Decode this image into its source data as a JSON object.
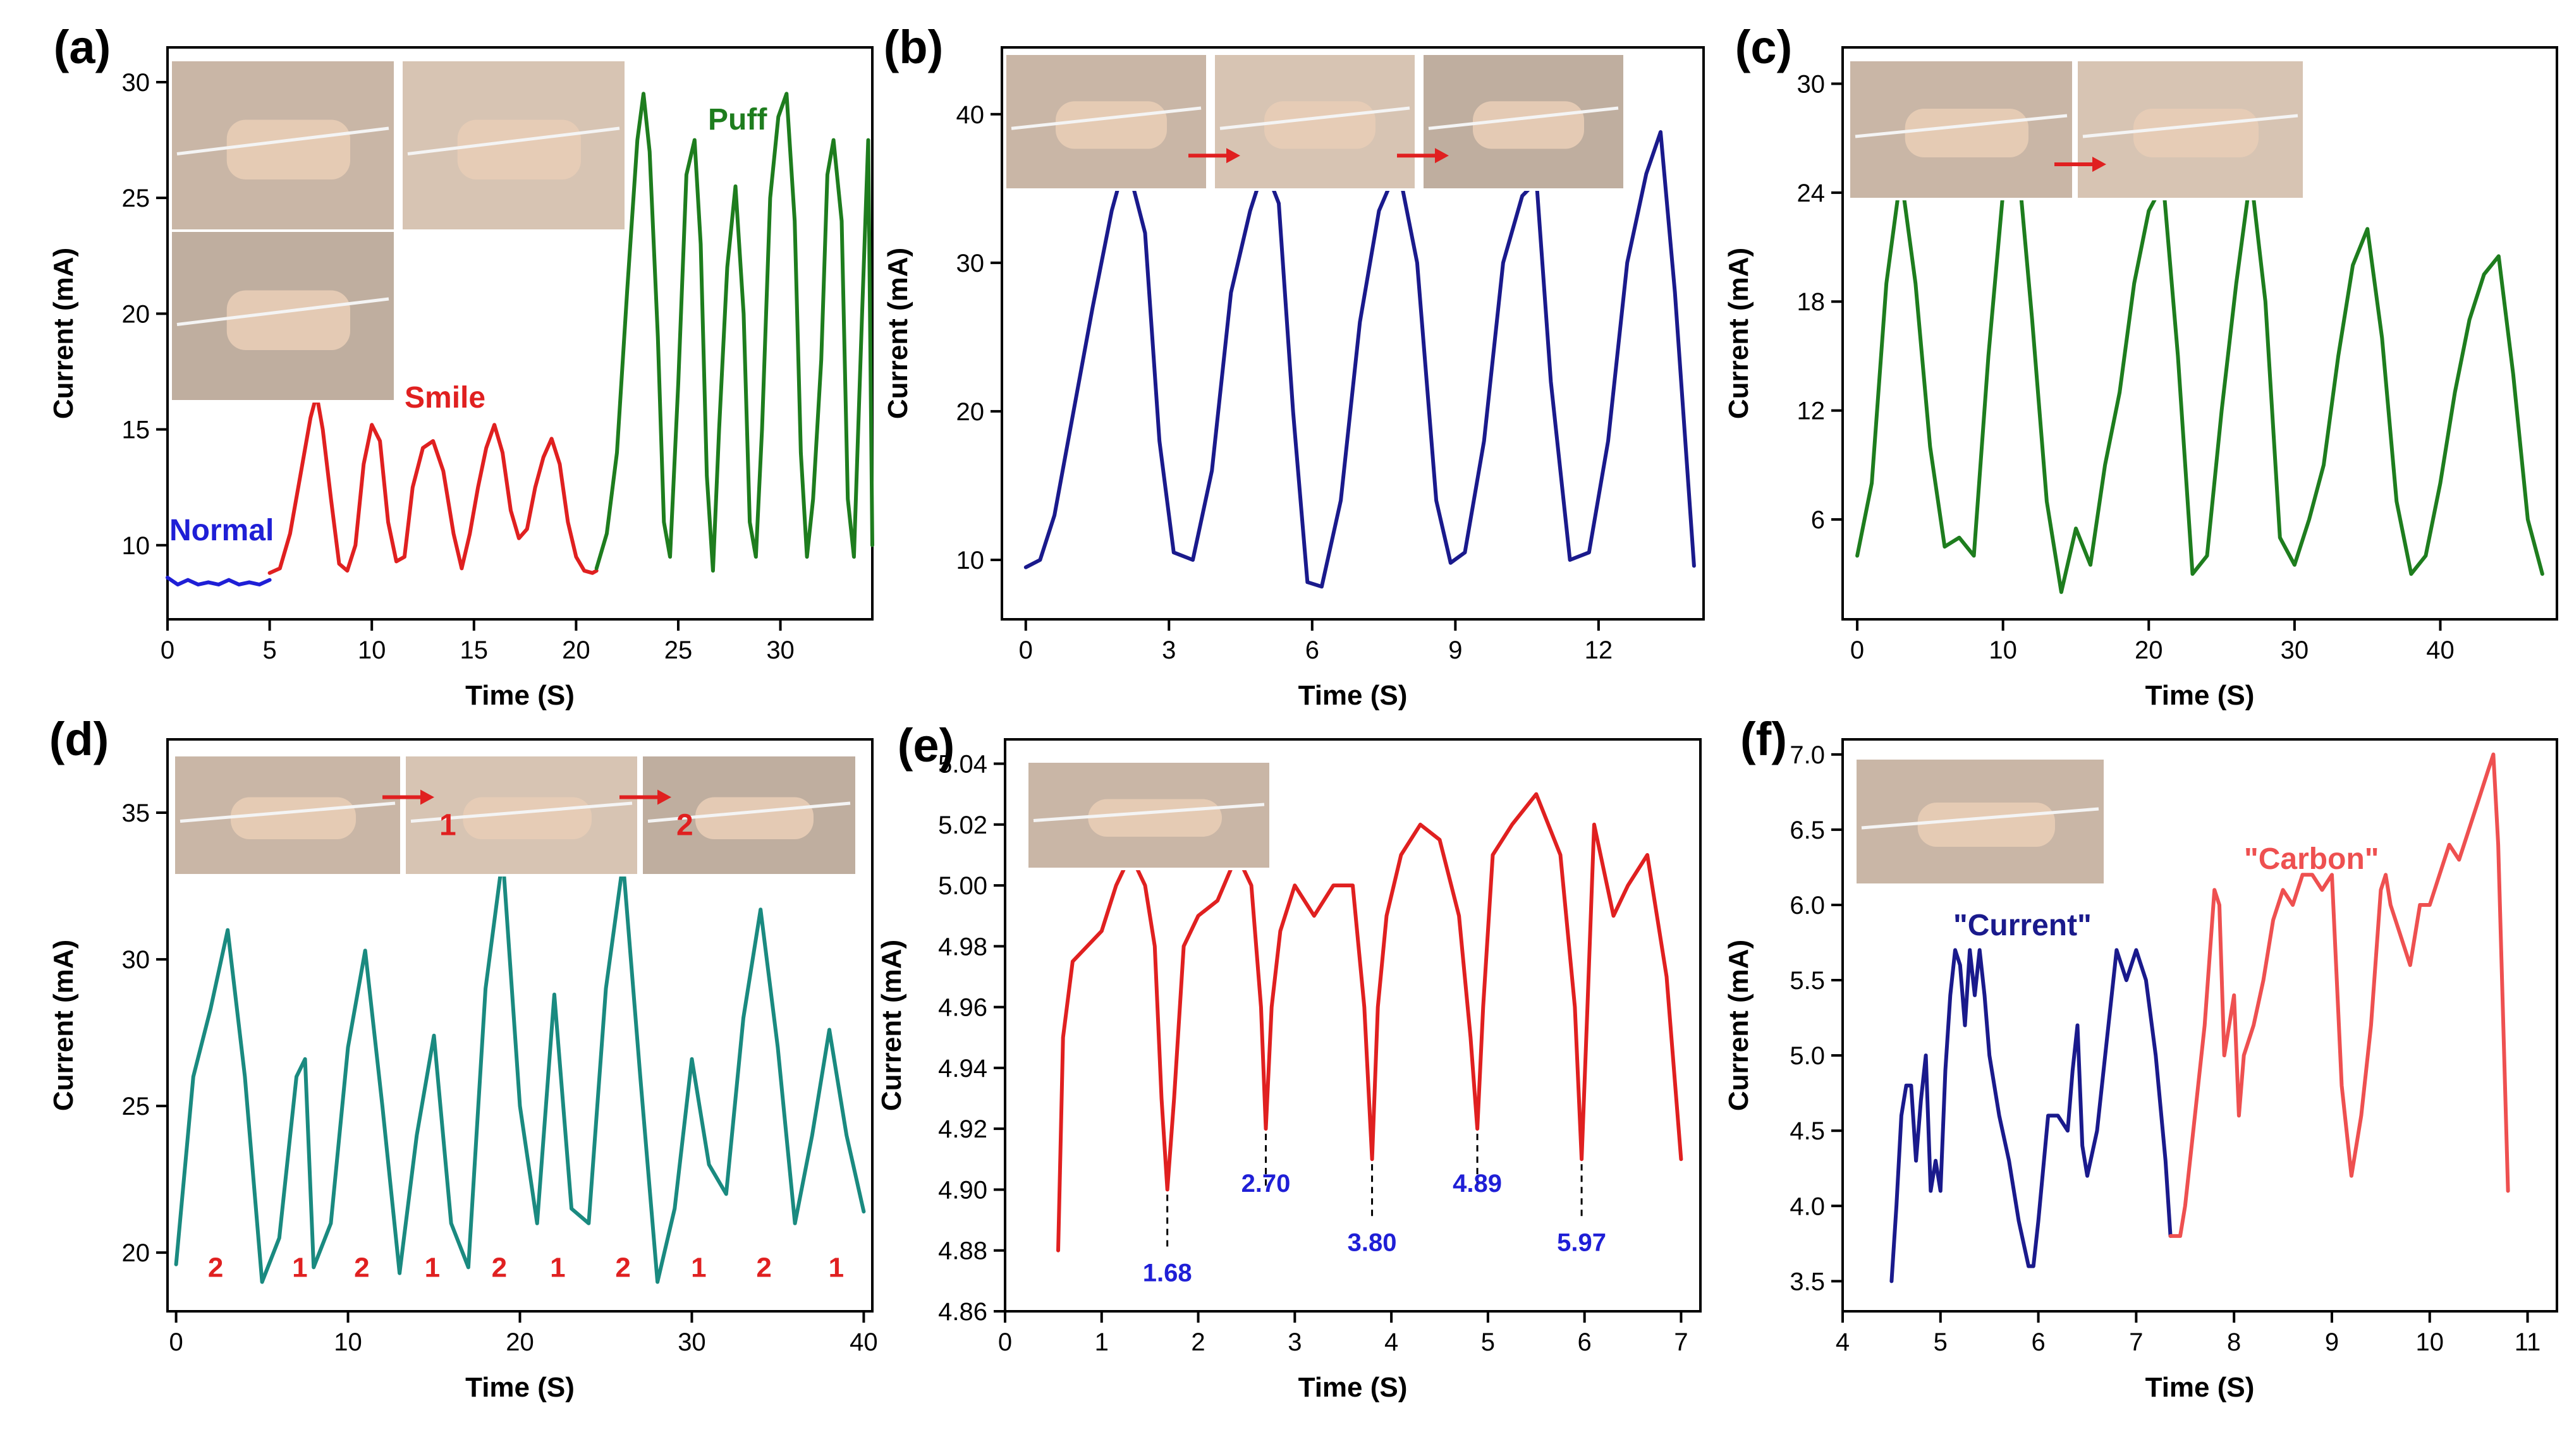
{
  "figure": {
    "photo_label": "photo"
  },
  "chart_data": [
    {
      "id": "a",
      "panel_label": "(a)",
      "type": "line",
      "xlabel": "Time (S)",
      "ylabel": "Current (mA)",
      "xlim": [
        0,
        34.5
      ],
      "ylim": [
        6.8,
        31.5
      ],
      "xticks": [
        0,
        5,
        10,
        15,
        20,
        25,
        30
      ],
      "yticks": [
        10,
        15,
        20,
        25,
        30
      ],
      "photo_panes": 3,
      "series": [
        {
          "name": "Normal",
          "color": "#1f1fd6",
          "x": [
            0,
            0.5,
            1,
            1.5,
            2,
            2.5,
            3,
            3.5,
            4,
            4.5,
            5
          ],
          "y": [
            8.6,
            8.3,
            8.5,
            8.3,
            8.4,
            8.3,
            8.5,
            8.3,
            8.4,
            8.3,
            8.5
          ]
        },
        {
          "name": "Smile",
          "color": "#e02020",
          "x": [
            5,
            5.5,
            6,
            6.5,
            7,
            7.3,
            7.6,
            8,
            8.4,
            8.8,
            9.2,
            9.6,
            10,
            10.4,
            10.8,
            11.2,
            11.6,
            12,
            12.5,
            13,
            13.5,
            14,
            14.4,
            14.8,
            15.2,
            15.6,
            16,
            16.4,
            16.8,
            17.2,
            17.6,
            18,
            18.4,
            18.8,
            19.2,
            19.6,
            20,
            20.4,
            20.8,
            21
          ],
          "y": [
            8.8,
            9.0,
            10.5,
            13.0,
            15.5,
            16.5,
            15.0,
            12.0,
            9.2,
            8.9,
            10.0,
            13.5,
            15.2,
            14.5,
            11.0,
            9.3,
            9.5,
            12.5,
            14.2,
            14.5,
            13.2,
            10.5,
            9.0,
            10.5,
            12.5,
            14.2,
            15.2,
            14.0,
            11.5,
            10.3,
            10.7,
            12.5,
            13.8,
            14.6,
            13.5,
            11.0,
            9.5,
            8.9,
            8.8,
            8.9
          ]
        },
        {
          "name": "Puff",
          "color": "#1e7d1e",
          "x": [
            21,
            21.5,
            22,
            22.5,
            23,
            23.3,
            23.6,
            24,
            24.3,
            24.6,
            25,
            25.4,
            25.8,
            26.1,
            26.4,
            26.7,
            27,
            27.4,
            27.8,
            28.2,
            28.5,
            28.8,
            29.1,
            29.5,
            29.9,
            30.3,
            30.7,
            31,
            31.3,
            31.6,
            32,
            32.3,
            32.6,
            33,
            33.3,
            33.6,
            34,
            34.3,
            34.5
          ],
          "y": [
            9.0,
            10.5,
            14.0,
            21.0,
            27.5,
            29.5,
            27.0,
            19.0,
            11.0,
            9.5,
            17.0,
            26.0,
            27.5,
            23.0,
            13.0,
            8.9,
            15.0,
            22.0,
            25.5,
            20.0,
            11.0,
            9.5,
            15.0,
            25.0,
            28.5,
            29.5,
            24.0,
            14.0,
            9.5,
            12.0,
            18.0,
            26.0,
            27.5,
            24.0,
            12.0,
            9.5,
            20.0,
            27.5,
            10.0
          ]
        }
      ]
    },
    {
      "id": "b",
      "panel_label": "(b)",
      "type": "line",
      "xlabel": "Time (S)",
      "ylabel": "Current (mA)",
      "xlim": [
        -0.5,
        14.2
      ],
      "ylim": [
        6.0,
        44.5
      ],
      "xticks": [
        0,
        3,
        6,
        9,
        12
      ],
      "yticks": [
        10,
        20,
        30,
        40
      ],
      "photo_panes": 3,
      "series": [
        {
          "name": "",
          "color": "#1a1a8c",
          "x": [
            0,
            0.3,
            0.6,
            1,
            1.4,
            1.8,
            2.1,
            2.5,
            2.8,
            3.1,
            3.5,
            3.9,
            4.3,
            4.7,
            5,
            5.3,
            5.6,
            5.9,
            6.2,
            6.6,
            7,
            7.4,
            7.8,
            8.2,
            8.6,
            8.9,
            9.2,
            9.6,
            10,
            10.4,
            10.7,
            11,
            11.4,
            11.8,
            12.2,
            12.6,
            13,
            13.3,
            13.6,
            14
          ],
          "y": [
            9.5,
            10.0,
            13.0,
            20.0,
            27.0,
            33.5,
            37.0,
            32.0,
            18.0,
            10.5,
            10.0,
            16.0,
            28.0,
            33.5,
            36.5,
            34.0,
            20.0,
            8.5,
            8.2,
            14.0,
            26.0,
            33.5,
            36.5,
            30.0,
            14.0,
            9.8,
            10.5,
            18.0,
            30.0,
            34.5,
            35.5,
            22.0,
            10.0,
            10.5,
            18.0,
            30.0,
            36.0,
            38.8,
            28.0,
            9.6
          ]
        }
      ]
    },
    {
      "id": "c",
      "panel_label": "(c)",
      "type": "line",
      "xlabel": "Time (S)",
      "ylabel": "Current (mA)",
      "xlim": [
        -1,
        48
      ],
      "ylim": [
        0.5,
        32
      ],
      "xticks": [
        0,
        10,
        20,
        30,
        40
      ],
      "yticks": [
        6,
        12,
        18,
        24,
        30
      ],
      "photo_panes": 2,
      "series": [
        {
          "name": "",
          "color": "#1e7d1e",
          "x": [
            0,
            1,
            2,
            3,
            4,
            5,
            6,
            7,
            8,
            9,
            10,
            11,
            12,
            13,
            14,
            15,
            16,
            17,
            18,
            19,
            20,
            21,
            22,
            23,
            24,
            25,
            26,
            27,
            28,
            29,
            30,
            31,
            32,
            33,
            34,
            35,
            36,
            37,
            38,
            39,
            40,
            41,
            42,
            43,
            44,
            45,
            46,
            47
          ],
          "y": [
            4.0,
            8.0,
            19.0,
            25.0,
            19.0,
            10.0,
            4.5,
            5.0,
            4.0,
            15.0,
            24.0,
            26.0,
            17.0,
            7.0,
            2.0,
            5.5,
            3.5,
            9.0,
            13.0,
            19.0,
            23.0,
            24.5,
            15.0,
            3.0,
            4.0,
            12.0,
            19.0,
            25.0,
            18.0,
            5.0,
            3.5,
            6.0,
            9.0,
            15.0,
            20.0,
            22.0,
            16.0,
            7.0,
            3.0,
            4.0,
            8.0,
            13.0,
            17.0,
            19.5,
            20.5,
            14.0,
            6.0,
            3.0
          ]
        }
      ]
    },
    {
      "id": "d",
      "panel_label": "(d)",
      "type": "line",
      "xlabel": "Time (S)",
      "ylabel": "Current (mA)",
      "xlim": [
        -0.5,
        40.5
      ],
      "ylim": [
        18.0,
        37.5
      ],
      "xticks": [
        0,
        10,
        20,
        30,
        40
      ],
      "yticks": [
        20,
        25,
        30,
        35
      ],
      "photo_panes": 3,
      "photo_step_labels": [
        "1",
        "2"
      ],
      "cycle_labels": [
        "2",
        "1",
        "2",
        "1",
        "2",
        "1",
        "2",
        "1",
        "2",
        "1"
      ],
      "cycle_label_x": [
        2.3,
        7.2,
        10.8,
        14.9,
        18.8,
        22.2,
        26.0,
        30.4,
        34.2,
        38.4
      ],
      "series": [
        {
          "name": "",
          "color": "#1a8a80",
          "x": [
            0,
            1,
            2,
            3,
            4,
            5,
            6,
            7,
            7.5,
            8,
            9,
            10,
            11,
            12,
            13,
            14,
            15,
            16,
            17,
            18,
            19,
            20,
            21,
            22,
            23,
            24,
            25,
            26,
            27,
            28,
            29,
            30,
            31,
            32,
            33,
            34,
            35,
            36,
            37,
            38,
            39,
            40
          ],
          "y": [
            19.6,
            26.0,
            28.3,
            31.0,
            26.0,
            19.0,
            20.5,
            26.0,
            26.6,
            19.5,
            21.0,
            27.0,
            30.3,
            25.0,
            19.3,
            24.0,
            27.4,
            21.0,
            19.5,
            29.0,
            33.5,
            25.0,
            21.0,
            28.8,
            21.5,
            21.0,
            29.0,
            33.3,
            26.0,
            19.0,
            21.5,
            26.6,
            23.0,
            22.0,
            28.0,
            31.7,
            27.0,
            21.0,
            24.0,
            27.6,
            24.0,
            21.4
          ]
        }
      ]
    },
    {
      "id": "e",
      "panel_label": "(e)",
      "type": "line",
      "xlabel": "Time (S)",
      "ylabel": "Current (mA)",
      "xlim": [
        0,
        7.2
      ],
      "ylim": [
        4.86,
        5.048
      ],
      "xticks": [
        0,
        1,
        2,
        3,
        4,
        5,
        6,
        7
      ],
      "yticks": [
        4.86,
        4.88,
        4.9,
        4.92,
        4.94,
        4.96,
        4.98,
        5.0,
        5.02,
        5.04
      ],
      "photo_panes": 1,
      "annotations": [
        {
          "label": "1.68",
          "x": 1.68,
          "y": 4.9
        },
        {
          "label": "2.70",
          "x": 2.7,
          "y": 4.92
        },
        {
          "label": "3.80",
          "x": 3.8,
          "y": 4.91
        },
        {
          "label": "4.89",
          "x": 4.89,
          "y": 4.92
        },
        {
          "label": "5.97",
          "x": 5.97,
          "y": 4.91
        }
      ],
      "series": [
        {
          "name": "",
          "color": "#e02020",
          "x": [
            0.55,
            0.6,
            0.7,
            0.85,
            1.0,
            1.15,
            1.3,
            1.45,
            1.55,
            1.62,
            1.68,
            1.75,
            1.85,
            2.0,
            2.2,
            2.4,
            2.55,
            2.65,
            2.7,
            2.76,
            2.85,
            3.0,
            3.2,
            3.4,
            3.6,
            3.72,
            3.8,
            3.86,
            3.95,
            4.1,
            4.3,
            4.5,
            4.7,
            4.82,
            4.89,
            4.95,
            5.05,
            5.25,
            5.5,
            5.75,
            5.9,
            5.97,
            6.03,
            6.1,
            6.3,
            6.45,
            6.65,
            6.85,
            7.0
          ],
          "y": [
            4.88,
            4.95,
            4.975,
            4.98,
            4.985,
            5.0,
            5.01,
            5.0,
            4.98,
            4.93,
            4.9,
            4.93,
            4.98,
            4.99,
            4.995,
            5.01,
            5.0,
            4.96,
            4.92,
            4.96,
            4.985,
            5.0,
            4.99,
            5.0,
            5.0,
            4.96,
            4.91,
            4.96,
            4.99,
            5.01,
            5.02,
            5.015,
            4.99,
            4.95,
            4.92,
            4.96,
            5.01,
            5.02,
            5.03,
            5.01,
            4.96,
            4.91,
            4.96,
            5.02,
            4.99,
            5.0,
            5.01,
            4.97,
            4.91
          ]
        }
      ]
    },
    {
      "id": "f",
      "panel_label": "(f)",
      "type": "line",
      "xlabel": "Time (S)",
      "ylabel": "Current (mA)",
      "xlim": [
        4,
        11.3
      ],
      "ylim": [
        3.3,
        7.1
      ],
      "xticks": [
        4,
        5,
        6,
        7,
        8,
        9,
        10,
        11
      ],
      "yticks": [
        3.5,
        4.0,
        4.5,
        5.0,
        5.5,
        6.0,
        6.5,
        7.0
      ],
      "photo_panes": 1,
      "series": [
        {
          "name": "\"Current\"",
          "color": "#1a1a8c",
          "x": [
            4.5,
            4.55,
            4.6,
            4.65,
            4.7,
            4.75,
            4.8,
            4.85,
            4.9,
            4.95,
            5.0,
            5.05,
            5.1,
            5.15,
            5.2,
            5.25,
            5.3,
            5.35,
            5.4,
            5.45,
            5.5,
            5.6,
            5.7,
            5.8,
            5.9,
            5.95,
            6.0,
            6.1,
            6.2,
            6.3,
            6.35,
            6.4,
            6.45,
            6.5,
            6.6,
            6.7,
            6.8,
            6.9,
            7.0,
            7.05,
            7.1,
            7.2,
            7.3,
            7.35
          ],
          "y": [
            3.5,
            4.0,
            4.6,
            4.8,
            4.8,
            4.3,
            4.7,
            5.0,
            4.1,
            4.3,
            4.1,
            4.9,
            5.4,
            5.7,
            5.6,
            5.2,
            5.7,
            5.4,
            5.7,
            5.4,
            5.0,
            4.6,
            4.3,
            3.9,
            3.6,
            3.6,
            3.9,
            4.6,
            4.6,
            4.5,
            4.9,
            5.2,
            4.4,
            4.2,
            4.5,
            5.1,
            5.7,
            5.5,
            5.7,
            5.6,
            5.5,
            5.0,
            4.3,
            3.8
          ]
        },
        {
          "name": "\"Carbon\"",
          "color": "#ee5050",
          "x": [
            7.35,
            7.45,
            7.5,
            7.6,
            7.7,
            7.8,
            7.85,
            7.9,
            8.0,
            8.05,
            8.1,
            8.2,
            8.3,
            8.4,
            8.5,
            8.6,
            8.7,
            8.8,
            8.9,
            9.0,
            9.1,
            9.2,
            9.3,
            9.4,
            9.5,
            9.55,
            9.6,
            9.7,
            9.8,
            9.9,
            10.0,
            10.1,
            10.2,
            10.3,
            10.4,
            10.5,
            10.6,
            10.65,
            10.7,
            10.8
          ],
          "y": [
            3.8,
            3.8,
            4.0,
            4.6,
            5.2,
            6.1,
            6.0,
            5.0,
            5.4,
            4.6,
            5.0,
            5.2,
            5.5,
            5.9,
            6.1,
            6.0,
            6.2,
            6.2,
            6.1,
            6.2,
            4.8,
            4.2,
            4.6,
            5.2,
            6.1,
            6.2,
            6.0,
            5.8,
            5.6,
            6.0,
            6.0,
            6.2,
            6.4,
            6.3,
            6.5,
            6.7,
            6.9,
            7.0,
            6.4,
            4.1
          ]
        }
      ]
    }
  ]
}
